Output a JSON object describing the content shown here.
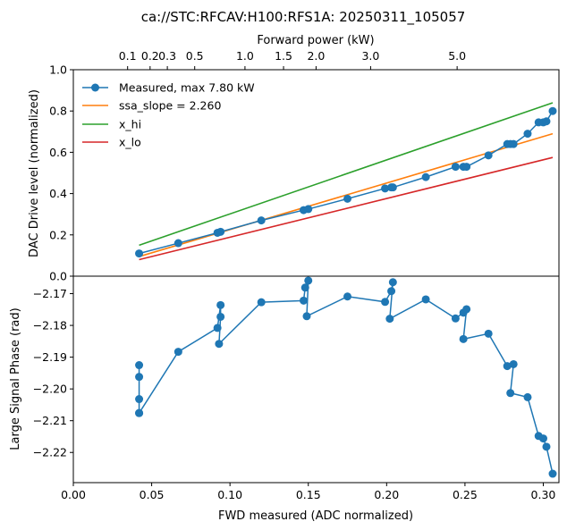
{
  "title": "ca://STC:RFCAV:H100:RFS1A:  20250311_105057",
  "chart_data": [
    {
      "type": "line",
      "panel": "top",
      "title": "ca://STC:RFCAV:H100:RFS1A:  20250311_105057",
      "xlabel": "FWD measured (ADC normalized)",
      "ylabel": "DAC Drive level (normalized)",
      "secondary_xlabel": "Forward power (kW)",
      "secondary_xticks": [
        "0.1",
        "0.2",
        "0.3",
        "0.5",
        "1.0",
        "1.5",
        "2.0",
        "3.0",
        "5.0"
      ],
      "secondary_xtick_values_kw": [
        0.1,
        0.2,
        0.3,
        0.5,
        1.0,
        1.5,
        2.0,
        3.0,
        5.0
      ],
      "secondary_full_scale_kw": 7.8,
      "xlim": [
        0.0,
        0.31
      ],
      "ylim": [
        0.0,
        1.0
      ],
      "xticks": [
        "0.00",
        "0.05",
        "0.10",
        "0.15",
        "0.20",
        "0.25",
        "0.30"
      ],
      "yticks": [
        "0.0",
        "0.2",
        "0.4",
        "0.6",
        "0.8",
        "1.0"
      ],
      "legend_position": "top-left",
      "series": [
        {
          "name": "Measured, max 7.80 kW",
          "color": "#1f77b4",
          "marker": "circle",
          "x": [
            0.042,
            0.067,
            0.092,
            0.094,
            0.12,
            0.147,
            0.15,
            0.175,
            0.199,
            0.203,
            0.204,
            0.225,
            0.244,
            0.249,
            0.251,
            0.265,
            0.277,
            0.279,
            0.281,
            0.29,
            0.297,
            0.3,
            0.302,
            0.306
          ],
          "y": [
            0.11,
            0.16,
            0.21,
            0.215,
            0.27,
            0.32,
            0.325,
            0.375,
            0.425,
            0.43,
            0.43,
            0.48,
            0.53,
            0.53,
            0.53,
            0.585,
            0.64,
            0.64,
            0.64,
            0.69,
            0.745,
            0.745,
            0.75,
            0.8
          ]
        },
        {
          "name": "ssa_slope = 2.260",
          "color": "#ff7f0e",
          "x": [
            0.042,
            0.306
          ],
          "y": [
            0.095,
            0.69
          ]
        },
        {
          "name": "x_hi",
          "color": "#2ca02c",
          "x": [
            0.042,
            0.306
          ],
          "y": [
            0.15,
            0.84
          ]
        },
        {
          "name": "x_lo",
          "color": "#d62728",
          "x": [
            0.042,
            0.306
          ],
          "y": [
            0.08,
            0.575
          ]
        }
      ]
    },
    {
      "type": "line",
      "panel": "bottom",
      "xlabel": "FWD measured (ADC normalized)",
      "ylabel": "Large Signal Phase (rad)",
      "xlim": [
        0.0,
        0.31
      ],
      "ylim": [
        -2.2295,
        -2.1645
      ],
      "xticks": [
        "0.00",
        "0.05",
        "0.10",
        "0.15",
        "0.20",
        "0.25",
        "0.30"
      ],
      "yticks": [
        "−2.22",
        "−2.21",
        "−2.20",
        "−2.19",
        "−2.18",
        "−2.17"
      ],
      "ytick_values": [
        -2.22,
        -2.21,
        -2.2,
        -2.19,
        -2.18,
        -2.17
      ],
      "series": [
        {
          "name": "Large Signal Phase",
          "color": "#1f77b4",
          "marker": "circle",
          "x": [
            0.042,
            0.042,
            0.042,
            0.042,
            0.042,
            0.067,
            0.092,
            0.094,
            0.094,
            0.093,
            0.12,
            0.147,
            0.148,
            0.15,
            0.149,
            0.175,
            0.199,
            0.203,
            0.204,
            0.202,
            0.225,
            0.244,
            0.249,
            0.251,
            0.249,
            0.265,
            0.277,
            0.281,
            0.279,
            0.29,
            0.297,
            0.3,
            0.302,
            0.306
          ],
          "y": [
            -2.1925,
            -2.1962,
            -2.2032,
            -2.2076,
            -2.2076,
            -2.1883,
            -2.1808,
            -2.1736,
            -2.1773,
            -2.1858,
            -2.1727,
            -2.1722,
            -2.1681,
            -2.1659,
            -2.1771,
            -2.1709,
            -2.1726,
            -2.1692,
            -2.1664,
            -2.1779,
            -2.1718,
            -2.1778,
            -2.176,
            -2.1749,
            -2.1843,
            -2.1826,
            -2.1928,
            -2.1922,
            -2.2013,
            -2.2026,
            -2.2148,
            -2.2156,
            -2.2182,
            -2.2267
          ]
        }
      ]
    }
  ]
}
